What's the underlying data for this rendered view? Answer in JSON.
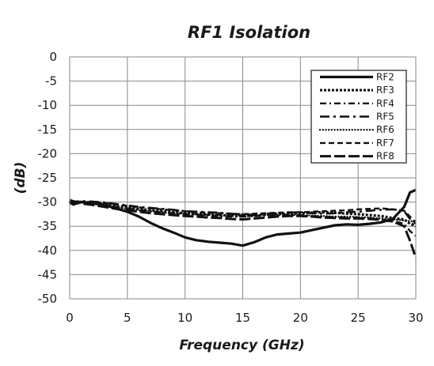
{
  "chart_data": {
    "type": "line",
    "title": "RF1 Isolation",
    "xlabel": "Frequency (GHz)",
    "ylabel": "(dB)",
    "xlim": [
      0,
      30
    ],
    "ylim": [
      -50,
      0
    ],
    "xticks": [
      0,
      5,
      10,
      15,
      20,
      25,
      30
    ],
    "xtick_labels": [
      "0",
      "5",
      "10",
      "15",
      "20",
      "25",
      "30"
    ],
    "yticks": [
      0,
      -5,
      -10,
      -15,
      -20,
      -25,
      -30,
      -35,
      -40,
      -45,
      -50
    ],
    "ytick_labels": [
      "0",
      "-5",
      "-10",
      "-15",
      "-20",
      "-25",
      "-30",
      "-35",
      "-40",
      "-45",
      "-50"
    ],
    "grid": true,
    "legend_position": "top-right",
    "series": [
      {
        "name": "RF2",
        "style": "solid",
        "x": [
          0,
          0.3,
          1,
          2,
          3,
          4,
          5,
          6,
          7,
          8,
          9,
          10,
          11,
          12,
          13,
          14,
          15,
          16,
          17,
          18,
          19,
          20,
          21,
          22,
          23,
          24,
          25,
          26,
          27,
          28,
          29,
          29.5,
          30
        ],
        "y": [
          -30.0,
          -30.5,
          -30.0,
          -30.2,
          -30.6,
          -31.3,
          -32.0,
          -33.0,
          -34.3,
          -35.4,
          -36.3,
          -37.3,
          -37.9,
          -38.2,
          -38.4,
          -38.6,
          -39.0,
          -38.3,
          -37.3,
          -36.7,
          -36.5,
          -36.3,
          -35.8,
          -35.3,
          -34.8,
          -34.6,
          -34.7,
          -34.5,
          -34.2,
          -33.5,
          -31.0,
          -28.0,
          -27.5
        ]
      },
      {
        "name": "RF3",
        "style": "dotted-heavy",
        "x": [
          0,
          1,
          2,
          3,
          4,
          5,
          6,
          7,
          8,
          9,
          10,
          11,
          12,
          13,
          14,
          15,
          16,
          17,
          18,
          19,
          20,
          21,
          22,
          23,
          24,
          25,
          26,
          27,
          28,
          29,
          29.5,
          30
        ],
        "y": [
          -30.3,
          -30.0,
          -30.2,
          -30.5,
          -30.8,
          -31.1,
          -31.4,
          -31.7,
          -31.9,
          -32.1,
          -32.3,
          -32.5,
          -32.6,
          -32.7,
          -32.8,
          -32.9,
          -32.8,
          -32.6,
          -32.5,
          -32.4,
          -32.3,
          -32.2,
          -32.1,
          -32.2,
          -32.4,
          -32.5,
          -32.7,
          -32.9,
          -33.3,
          -33.6,
          -34.5,
          -35.0
        ]
      },
      {
        "name": "RF4",
        "style": "dash-dot",
        "x": [
          0,
          1,
          2,
          3,
          4,
          5,
          6,
          7,
          8,
          9,
          10,
          11,
          12,
          13,
          14,
          15,
          16,
          17,
          18,
          19,
          20,
          21,
          22,
          23,
          24,
          25,
          26,
          27,
          28,
          29,
          29.5,
          30
        ],
        "y": [
          -30.0,
          -30.1,
          -30.3,
          -30.6,
          -31.0,
          -31.3,
          -31.6,
          -31.9,
          -32.1,
          -32.3,
          -32.5,
          -32.6,
          -32.8,
          -32.9,
          -33.0,
          -33.0,
          -32.9,
          -32.8,
          -32.8,
          -32.7,
          -32.7,
          -32.9,
          -33.0,
          -33.1,
          -33.2,
          -33.2,
          -33.3,
          -33.6,
          -33.9,
          -34.5,
          -36.0,
          -37.0
        ]
      },
      {
        "name": "RF5",
        "style": "long-dash-dot",
        "x": [
          0,
          1,
          2,
          3,
          4,
          5,
          6,
          7,
          8,
          9,
          10,
          11,
          12,
          13,
          14,
          15,
          16,
          17,
          18,
          19,
          20,
          21,
          22,
          23,
          24,
          25,
          26,
          27,
          28,
          29,
          29.5,
          30
        ],
        "y": [
          -30.0,
          -29.8,
          -29.9,
          -30.1,
          -30.4,
          -30.7,
          -31.0,
          -31.2,
          -31.4,
          -31.6,
          -31.9,
          -32.0,
          -32.1,
          -32.2,
          -32.4,
          -32.6,
          -32.6,
          -32.4,
          -32.3,
          -32.2,
          -32.1,
          -32.3,
          -32.4,
          -32.3,
          -32.1,
          -32.0,
          -31.8,
          -31.6,
          -31.5,
          -31.9,
          -33.5,
          -35.5
        ]
      },
      {
        "name": "RF6",
        "style": "dotted-round",
        "x": [
          0,
          1,
          2,
          3,
          4,
          5,
          6,
          7,
          8,
          9,
          10,
          11,
          12,
          13,
          14,
          15,
          16,
          17,
          18,
          19,
          20,
          21,
          22,
          23,
          24,
          25,
          26,
          27,
          28,
          29,
          29.5,
          30
        ],
        "y": [
          -30.0,
          -30.1,
          -30.4,
          -30.8,
          -31.1,
          -31.4,
          -31.7,
          -31.9,
          -32.1,
          -32.3,
          -32.4,
          -32.5,
          -32.6,
          -32.7,
          -32.8,
          -32.8,
          -32.7,
          -32.6,
          -32.6,
          -32.6,
          -32.7,
          -32.8,
          -32.9,
          -33.0,
          -33.0,
          -33.1,
          -33.2,
          -33.4,
          -33.6,
          -33.8,
          -34.0,
          -33.8
        ]
      },
      {
        "name": "RF7",
        "style": "dashed",
        "x": [
          0,
          1,
          2,
          3,
          4,
          5,
          6,
          7,
          8,
          9,
          10,
          11,
          12,
          13,
          14,
          15,
          16,
          17,
          18,
          19,
          20,
          21,
          22,
          23,
          24,
          25,
          26,
          27,
          28,
          29,
          29.5,
          30
        ],
        "y": [
          -30.1,
          -29.9,
          -30.0,
          -30.2,
          -30.5,
          -30.8,
          -31.1,
          -31.3,
          -31.5,
          -31.7,
          -31.9,
          -32.1,
          -32.2,
          -32.3,
          -32.4,
          -32.5,
          -32.4,
          -32.3,
          -32.2,
          -32.1,
          -32.1,
          -32.0,
          -31.9,
          -31.8,
          -31.7,
          -31.5,
          -31.4,
          -31.3,
          -31.5,
          -31.8,
          -33.0,
          -34.5
        ]
      },
      {
        "name": "RF8",
        "style": "long-dash",
        "x": [
          0,
          1,
          2,
          3,
          4,
          5,
          6,
          7,
          8,
          9,
          10,
          11,
          12,
          13,
          14,
          15,
          16,
          17,
          18,
          19,
          20,
          21,
          22,
          23,
          24,
          25,
          26,
          27,
          28,
          29,
          29.5,
          30
        ],
        "y": [
          -29.6,
          -30.3,
          -30.6,
          -31.0,
          -31.4,
          -31.7,
          -32.0,
          -32.3,
          -32.5,
          -32.7,
          -32.9,
          -33.0,
          -33.2,
          -33.3,
          -33.5,
          -33.6,
          -33.4,
          -33.2,
          -33.0,
          -32.9,
          -32.9,
          -33.0,
          -33.2,
          -33.3,
          -33.4,
          -33.4,
          -33.5,
          -33.7,
          -34.0,
          -35.0,
          -38.0,
          -41.5
        ]
      }
    ]
  }
}
